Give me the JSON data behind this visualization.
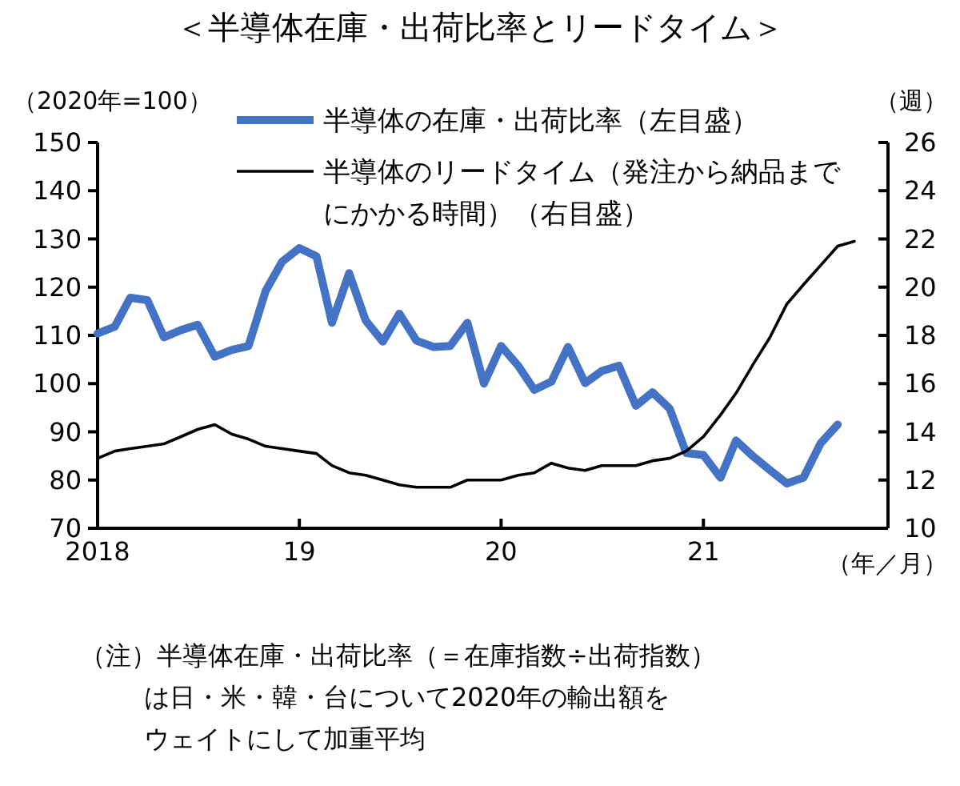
{
  "chart_data": {
    "type": "line",
    "title": "＜半導体在庫・出荷比率とリードタイム＞",
    "ylabel": "（2020年=100）",
    "y2label": "（週）",
    "xlabel": "（年／月）",
    "x": [
      "2018-01",
      "2018-02",
      "2018-03",
      "2018-04",
      "2018-05",
      "2018-06",
      "2018-07",
      "2018-08",
      "2018-09",
      "2018-10",
      "2018-11",
      "2018-12",
      "2019-01",
      "2019-02",
      "2019-03",
      "2019-04",
      "2019-05",
      "2019-06",
      "2019-07",
      "2019-08",
      "2019-09",
      "2019-10",
      "2019-11",
      "2019-12",
      "2020-01",
      "2020-02",
      "2020-03",
      "2020-04",
      "2020-05",
      "2020-06",
      "2020-07",
      "2020-08",
      "2020-09",
      "2020-10",
      "2020-11",
      "2020-12",
      "2021-01",
      "2021-02",
      "2021-03",
      "2021-04",
      "2021-05",
      "2021-06",
      "2021-07",
      "2021-08",
      "2021-09"
    ],
    "series": [
      {
        "name": "半導体の在庫・出荷比率（左目盛）",
        "color": "#4472c4",
        "values": [
          110.4,
          111.8,
          117.8,
          117.3,
          109.6,
          111.1,
          112.2,
          105.6,
          107,
          107.8,
          119.2,
          125.3,
          128.1,
          126.4,
          112.6,
          122.9,
          113.1,
          108.7,
          114.5,
          108.9,
          107.6,
          107.8,
          112.6,
          100,
          107.8,
          103.7,
          98.7,
          100.4,
          107.6,
          100.1,
          102.6,
          103.7,
          95.4,
          98.2,
          94.8,
          85.6,
          85.2,
          80.5,
          88.2,
          84.9,
          82.1,
          79.3,
          80.5,
          87.6,
          91.5
        ]
      },
      {
        "name": "半導体のリードタイム（発注から納品までにかかる時間）（右目盛）",
        "color": "#000000",
        "axis": "y2",
        "x": [
          "2018-01",
          "2018-02",
          "2018-03",
          "2018-04",
          "2018-05",
          "2018-06",
          "2018-07",
          "2018-08",
          "2018-09",
          "2018-10",
          "2018-11",
          "2018-12",
          "2019-01",
          "2019-02",
          "2019-03",
          "2019-04",
          "2019-05",
          "2019-06",
          "2019-07",
          "2019-08",
          "2019-09",
          "2019-10",
          "2019-11",
          "2019-12",
          "2020-01",
          "2020-02",
          "2020-03",
          "2020-04",
          "2020-05",
          "2020-06",
          "2020-07",
          "2020-08",
          "2020-09",
          "2020-10",
          "2020-11",
          "2020-12",
          "2021-01",
          "2021-02",
          "2021-03",
          "2021-04",
          "2021-05",
          "2021-06",
          "2021-07",
          "2021-08",
          "2021-09",
          "2021-10"
        ],
        "values": [
          12.9,
          13.2,
          13.3,
          13.4,
          13.5,
          13.8,
          14.1,
          14.3,
          13.9,
          13.7,
          13.4,
          13.3,
          13.2,
          13.1,
          12.6,
          12.3,
          12.2,
          12,
          11.8,
          11.7,
          11.7,
          11.7,
          12,
          12,
          12,
          12.2,
          12.3,
          12.7,
          12.5,
          12.4,
          12.6,
          12.6,
          12.6,
          12.8,
          12.9,
          13.2,
          13.8,
          14.7,
          15.6,
          16.8,
          17.9,
          19.3,
          20.1,
          20.9,
          21.7,
          21.9
        ]
      }
    ],
    "xlim": [
      "2018-01",
      "2021-12"
    ],
    "xticks": [
      {
        "value": "2018",
        "label": "2018"
      },
      {
        "value": "2019",
        "label": "19"
      },
      {
        "value": "2020",
        "label": "20"
      },
      {
        "value": "2021",
        "label": "21"
      }
    ],
    "ylim": [
      70,
      150
    ],
    "yticks": [
      70,
      80,
      90,
      100,
      110,
      120,
      130,
      140,
      150
    ],
    "y2lim": [
      10,
      26
    ],
    "y2ticks": [
      10,
      12,
      14,
      16,
      18,
      20,
      22,
      24,
      26
    ],
    "grid": false,
    "legend": "top",
    "annotations": [
      "（注）半導体在庫・出荷比率（＝在庫指数÷出荷指数）",
      "は日・米・韓・台について2020年の輸出額を",
      "ウェイトにして加重平均"
    ]
  }
}
